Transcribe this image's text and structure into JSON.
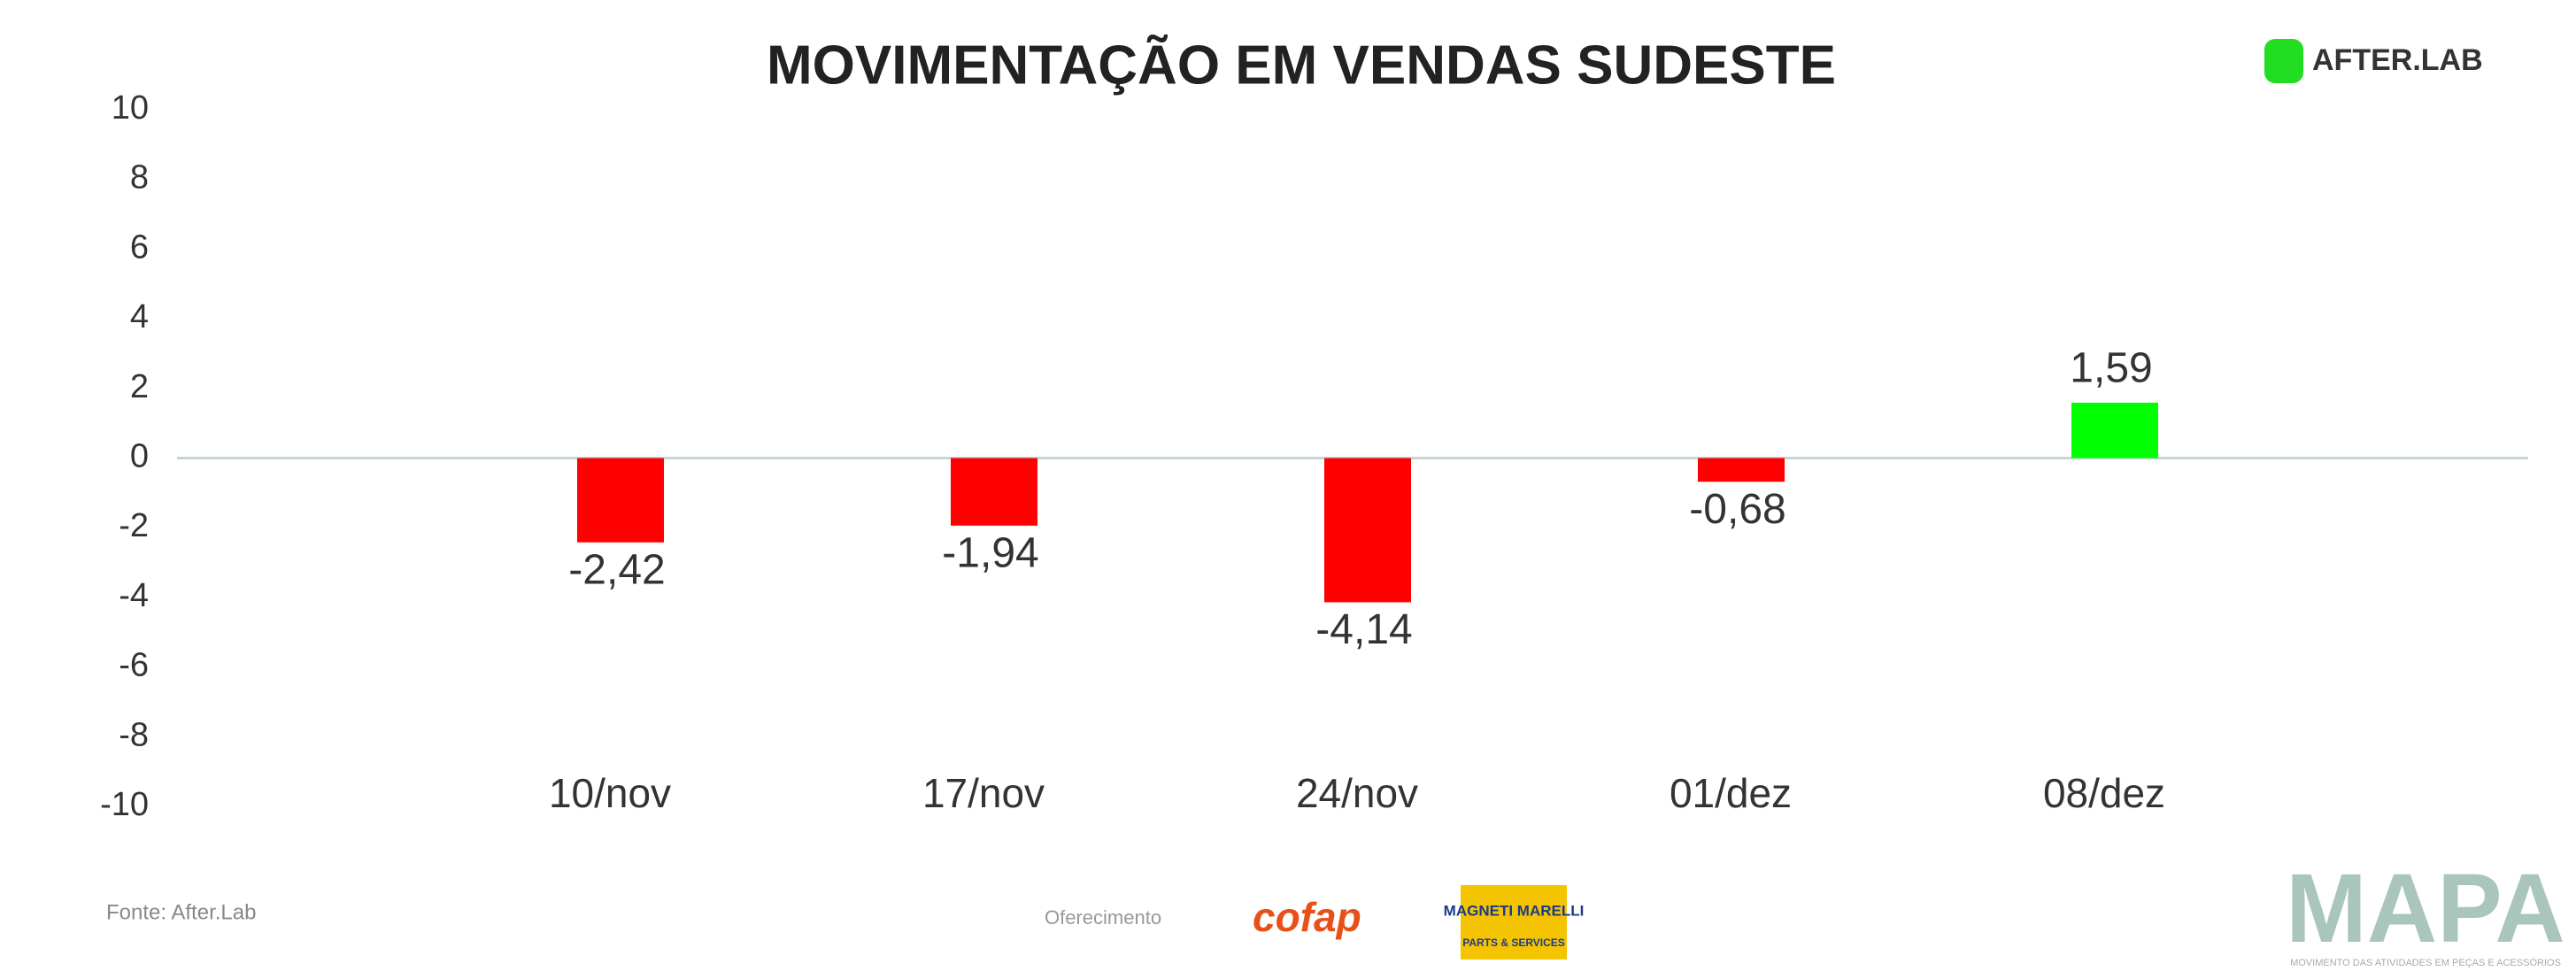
{
  "chart_data": {
    "type": "bar",
    "title": "MOVIMENTAÇÃO EM VENDAS SUDESTE",
    "categories": [
      "10/nov",
      "17/nov",
      "24/nov",
      "01/dez",
      "08/dez"
    ],
    "values": [
      -2.42,
      -1.94,
      -4.14,
      -0.68,
      1.59
    ],
    "value_labels": [
      "-2,42",
      "-1,94",
      "-4,14",
      "-0,68",
      "1,59"
    ],
    "colors": [
      "#ff0000",
      "#ff0000",
      "#ff0000",
      "#ff0000",
      "#00ff00"
    ],
    "ylim": [
      -10,
      10
    ],
    "yticks": [
      -10,
      -8,
      -6,
      -4,
      -2,
      0,
      2,
      4,
      6,
      8,
      10
    ],
    "grid": false
  },
  "brand": "AFTER.LAB",
  "source": "Fonte: After.Lab",
  "sponsor_label": "Oferecimento",
  "sponsors": [
    "cofap",
    "MAGNETI MARELLI",
    "PARTS & SERVICES"
  ],
  "footer_logo": "MAPA",
  "footer_tagline": "MOVIMENTO DAS ATIVIDADES EM PEÇAS E ACESSÓRIOS"
}
